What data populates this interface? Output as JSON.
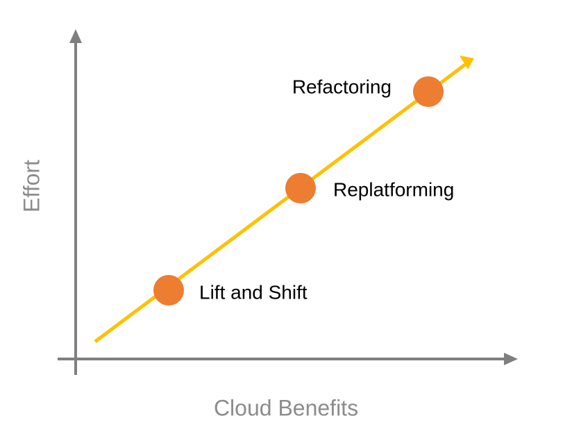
{
  "axes": {
    "x_label": "Cloud Benefits",
    "y_label": "Effort"
  },
  "nodes": [
    {
      "label": "Lift and Shift"
    },
    {
      "label": "Replatforming"
    },
    {
      "label": "Refactoring"
    }
  ]
}
